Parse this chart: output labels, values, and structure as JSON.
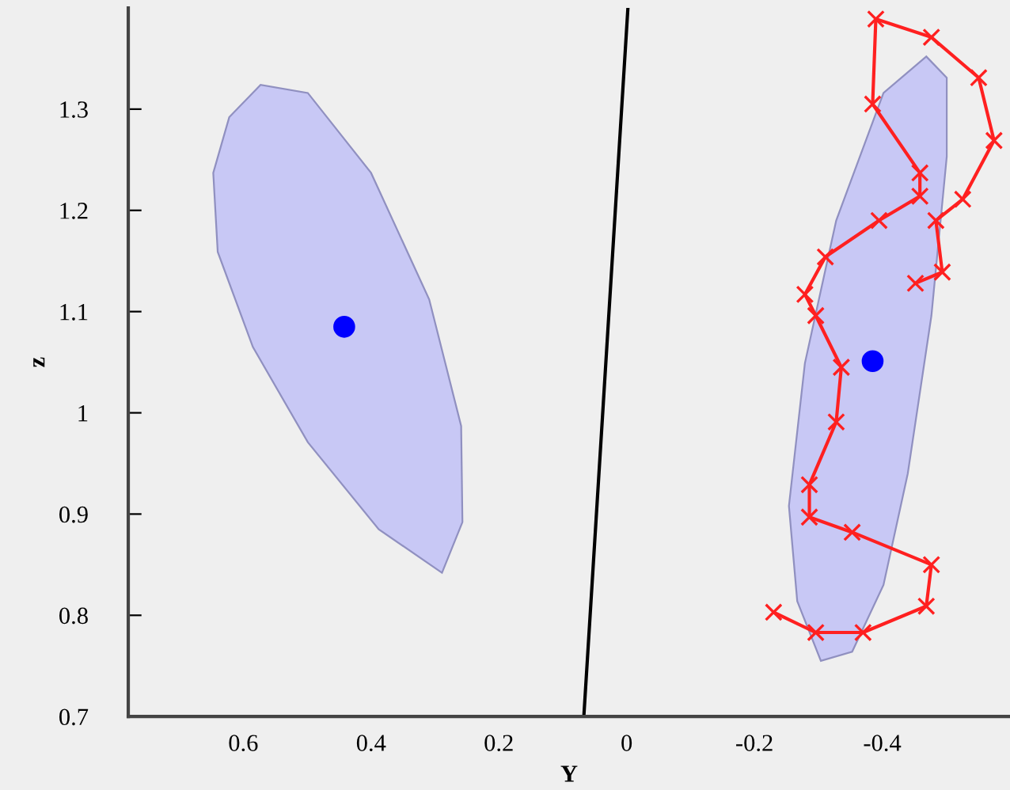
{
  "chart_data": {
    "type": "scatter",
    "xlabel": "Y",
    "ylabel": "z",
    "xlim": [
      0.78,
      -0.6
    ],
    "ylim": [
      0.7,
      1.4
    ],
    "xticks": [
      0.6,
      0.4,
      0.2,
      0,
      -0.2,
      -0.4
    ],
    "yticks": [
      0.7,
      0.8,
      0.9,
      1,
      1.1,
      1.2,
      1.3
    ],
    "grid": false,
    "series": [
      {
        "type": "area",
        "color": "#c8c8f5",
        "x": [
          0.573,
          0.622,
          0.647,
          0.64,
          0.585,
          0.499,
          0.388,
          0.289,
          0.257,
          0.259,
          0.309,
          0.4,
          0.499
        ],
        "values": [
          1.324,
          1.292,
          1.237,
          1.159,
          1.065,
          0.971,
          0.885,
          0.842,
          0.892,
          0.987,
          1.112,
          1.237,
          1.316
        ]
      },
      {
        "type": "area",
        "color": "#c8c8f5",
        "x": [
          -0.469,
          -0.402,
          -0.328,
          -0.279,
          -0.254,
          -0.267,
          -0.304,
          -0.353,
          -0.402,
          -0.44,
          -0.477,
          -0.501,
          -0.501
        ],
        "values": [
          1.352,
          1.316,
          1.19,
          1.049,
          0.908,
          0.814,
          0.755,
          0.764,
          0.83,
          0.94,
          1.096,
          1.253,
          1.331
        ]
      },
      {
        "type": "line",
        "color": "#000000",
        "marker": "none",
        "x": [
          0.067,
          -0.002
        ],
        "values": [
          0.7,
          1.4
        ]
      },
      {
        "type": "line",
        "color": "#ff2020",
        "marker": "cross",
        "x": [
          -0.23,
          -0.296,
          -0.37,
          -0.469,
          -0.477,
          -0.353,
          -0.286,
          -0.286,
          -0.328,
          -0.336,
          -0.296,
          -0.279,
          -0.311,
          -0.395,
          -0.459,
          -0.459,
          -0.385,
          -0.39,
          -0.477,
          -0.551,
          -0.575,
          -0.526,
          -0.484,
          -0.494,
          -0.452
        ],
        "values": [
          0.803,
          0.783,
          0.783,
          0.809,
          0.85,
          0.882,
          0.897,
          0.929,
          0.991,
          1.045,
          1.096,
          1.117,
          1.154,
          1.19,
          1.214,
          1.237,
          1.305,
          1.389,
          1.371,
          1.331,
          1.269,
          1.211,
          1.19,
          1.139,
          1.128
        ]
      },
      {
        "color": "#0000ff",
        "marker": "circle",
        "x": [
          0.442,
          -0.385
        ],
        "values": [
          1.085,
          1.051
        ]
      }
    ]
  }
}
